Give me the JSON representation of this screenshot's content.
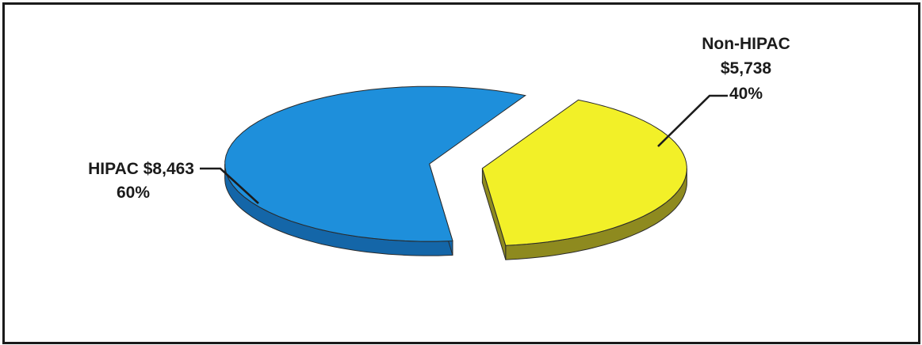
{
  "chart_data": {
    "type": "pie",
    "style": "3d-exploded",
    "slices": [
      {
        "label": "HIPAC",
        "value_text": "$8,463",
        "value": 8463,
        "percent_text": "60%",
        "percent": 60,
        "color": "#1e8fdb",
        "side_color": "#1466a8"
      },
      {
        "label": "Non-HIPAC",
        "value_text": "$5,738",
        "value": 5738,
        "percent_text": "40%",
        "percent": 40,
        "color": "#f2f028",
        "side_color": "#8e8a1f"
      }
    ],
    "data_labels": {
      "hipac_line1": "HIPAC $8,463",
      "hipac_line2": "60%",
      "nonhipac_line1": "Non-HIPAC",
      "nonhipac_line2": "$5,738",
      "nonhipac_line3": "40%"
    },
    "legend": "none"
  }
}
